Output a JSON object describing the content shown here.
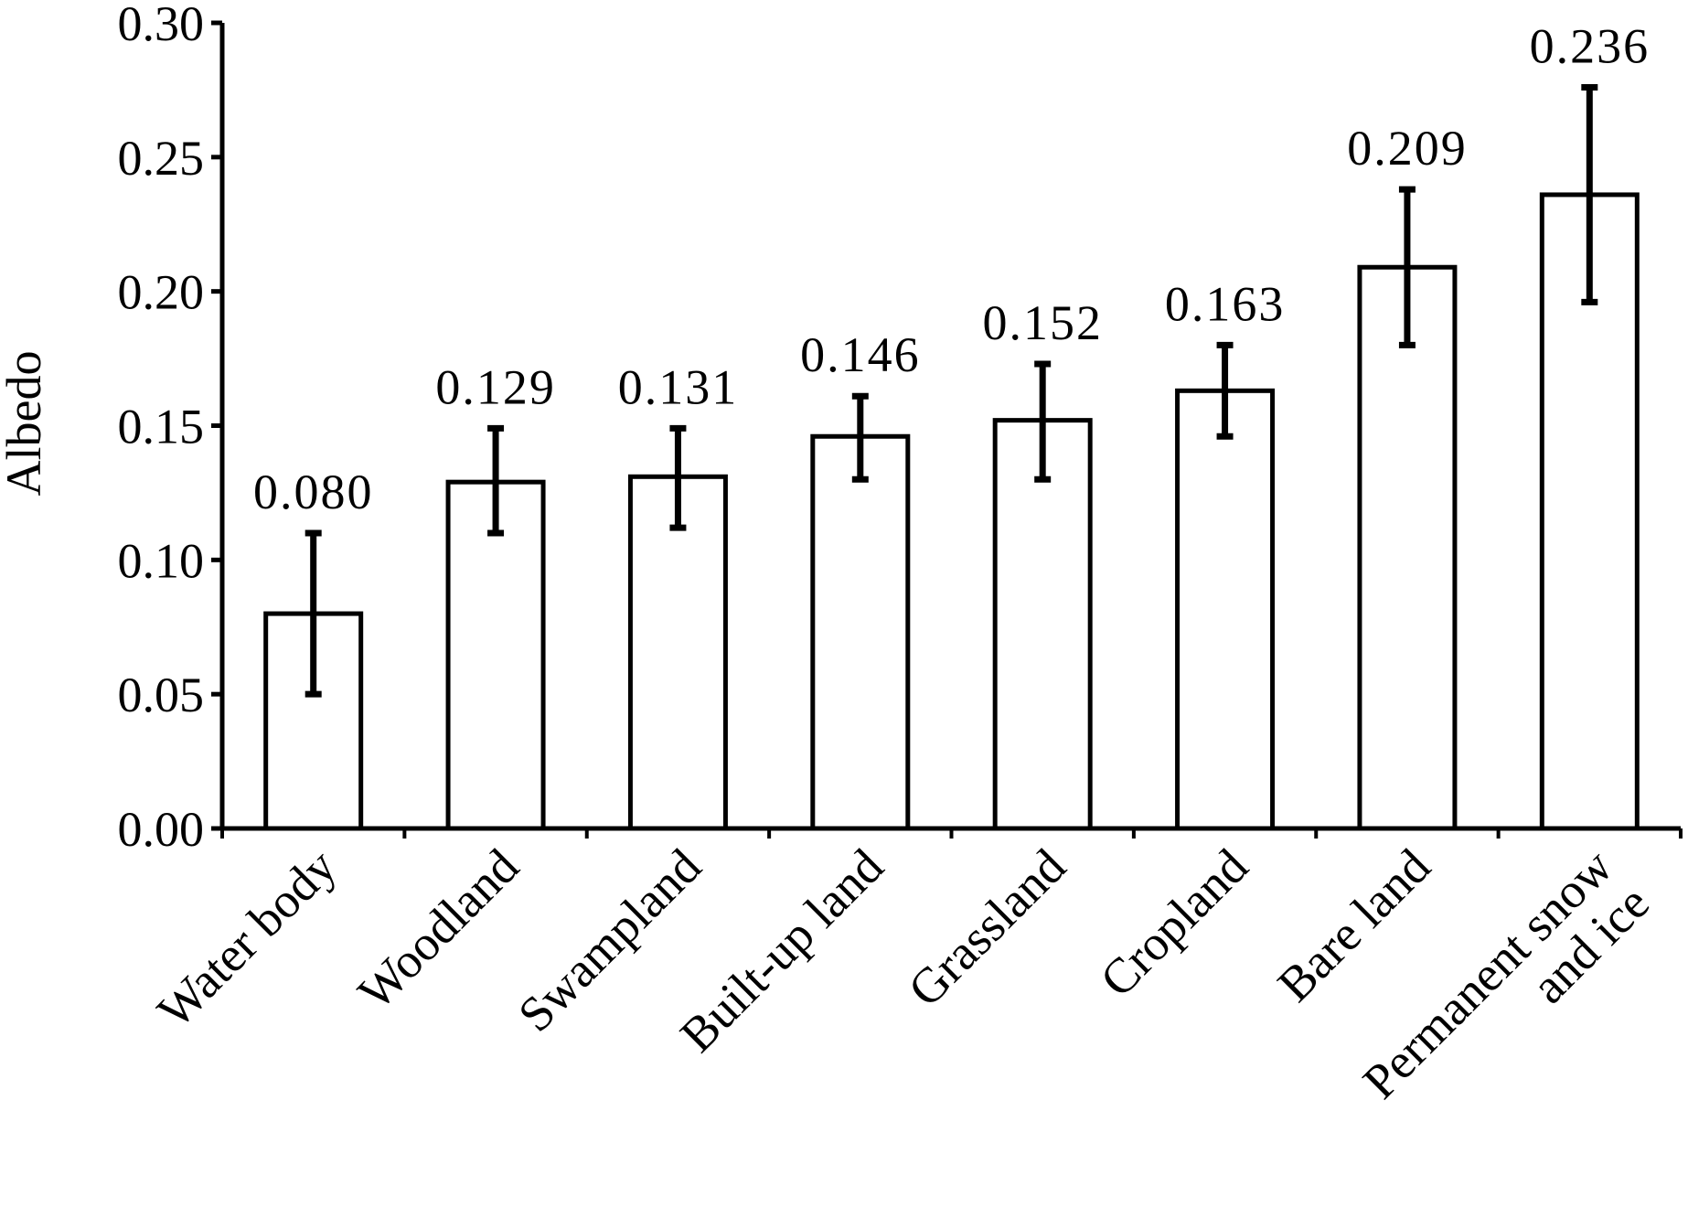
{
  "chart_data": {
    "type": "bar",
    "title": "",
    "xlabel": "",
    "ylabel": "Albedo",
    "ylim": [
      0,
      0.3
    ],
    "yticks": [
      "0.00",
      "0.05",
      "0.10",
      "0.15",
      "0.20",
      "0.25",
      "0.30"
    ],
    "grid": false,
    "legend": "none",
    "categories": [
      [
        "Water body"
      ],
      [
        "Woodland"
      ],
      [
        "Swampland"
      ],
      [
        "Built-up land"
      ],
      [
        "Grassland"
      ],
      [
        "Cropland"
      ],
      [
        "Bare land"
      ],
      [
        "Permanent snow",
        "and ice"
      ]
    ],
    "values": [
      0.08,
      0.129,
      0.131,
      0.146,
      0.152,
      0.163,
      0.209,
      0.236
    ],
    "value_labels": [
      "0.080",
      "0.129",
      "0.131",
      "0.146",
      "0.152",
      "0.163",
      "0.209",
      "0.236"
    ],
    "error_low": [
      0.05,
      0.11,
      0.112,
      0.13,
      0.13,
      0.146,
      0.18,
      0.196
    ],
    "error_high": [
      0.11,
      0.149,
      0.149,
      0.161,
      0.173,
      0.18,
      0.238,
      0.276
    ],
    "colors": {
      "bar_fill": "#ffffff",
      "bar_stroke": "#000000",
      "axis": "#000000"
    }
  }
}
